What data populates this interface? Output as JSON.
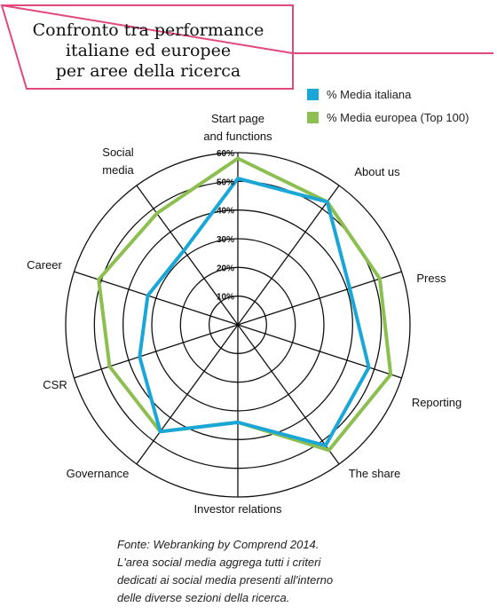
{
  "title_lines": [
    "Confronto tra performance",
    "italiane ed europee",
    "per aree della ricerca"
  ],
  "colors": {
    "accent_pink": "#e0487e",
    "series_italia": "#1aa7d8",
    "series_europa": "#8cbf4f",
    "grid": "#111111"
  },
  "chart_data": {
    "type": "radar",
    "categories": [
      [
        "Start page",
        "and functions"
      ],
      [
        "About us"
      ],
      [
        "Press"
      ],
      [
        "Reporting"
      ],
      [
        "The share"
      ],
      [
        "Investor relations"
      ],
      [
        "Governance"
      ],
      [
        "CSR"
      ],
      [
        "Career"
      ],
      [
        "Social",
        "media"
      ]
    ],
    "rlim": [
      0,
      60
    ],
    "ticks": [
      10,
      20,
      30,
      40,
      50,
      60
    ],
    "tick_labels": [
      "10%",
      "20%",
      "30%",
      "40%",
      "50%",
      "60%"
    ],
    "series": [
      {
        "name": "% Media italiana",
        "color": "#1aa7d8",
        "values": [
          51,
          53,
          41,
          48,
          52,
          34,
          46,
          36,
          33,
          32
        ]
      },
      {
        "name": "% Media europea (Top 100)",
        "color": "#8cbf4f",
        "values": [
          58,
          53,
          52,
          56,
          54,
          34,
          46,
          47,
          51,
          48
        ]
      }
    ]
  },
  "note_lines": [
    "Fonte: Webranking by Comprend 2014.",
    "L'area social media aggrega tutti i criteri",
    "dedicati ai social media presenti all'interno",
    "delle diverse sezioni della ricerca."
  ]
}
